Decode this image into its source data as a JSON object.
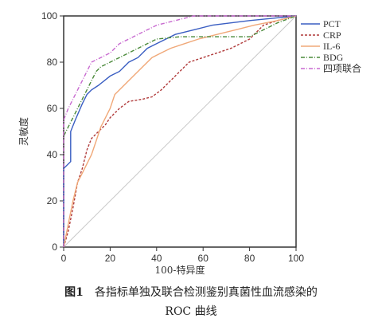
{
  "chart_data": {
    "type": "line",
    "xlabel": "100-特异度",
    "ylabel": "灵敏度",
    "xlim": [
      0,
      100
    ],
    "ylim": [
      0,
      100
    ],
    "x_ticks": [
      "0",
      "20",
      "40",
      "60",
      "80",
      "100"
    ],
    "y_ticks": [
      "0",
      "20",
      "40",
      "60",
      "80",
      "100"
    ],
    "grid": false,
    "legend_position": "top-right",
    "reference_line": true,
    "series": [
      {
        "name": "PCT",
        "color": "#3a5ec2",
        "dash": "solid",
        "points": [
          [
            0,
            0
          ],
          [
            0,
            34
          ],
          [
            3,
            37
          ],
          [
            3,
            50
          ],
          [
            5,
            55
          ],
          [
            8,
            62
          ],
          [
            10,
            66
          ],
          [
            12,
            68
          ],
          [
            15,
            70
          ],
          [
            20,
            74
          ],
          [
            24,
            76
          ],
          [
            28,
            80
          ],
          [
            32,
            82
          ],
          [
            36,
            86
          ],
          [
            40,
            88
          ],
          [
            44,
            90
          ],
          [
            48,
            92
          ],
          [
            56,
            94
          ],
          [
            64,
            96
          ],
          [
            72,
            97
          ],
          [
            80,
            98
          ],
          [
            90,
            99
          ],
          [
            100,
            100
          ]
        ]
      },
      {
        "name": "CRP",
        "color": "#b03a3a",
        "dash": "3,2",
        "points": [
          [
            0,
            0
          ],
          [
            2,
            7
          ],
          [
            4,
            17
          ],
          [
            6,
            28
          ],
          [
            8,
            34
          ],
          [
            10,
            42
          ],
          [
            12,
            47
          ],
          [
            15,
            50
          ],
          [
            18,
            53
          ],
          [
            20,
            56
          ],
          [
            24,
            60
          ],
          [
            28,
            63
          ],
          [
            34,
            64
          ],
          [
            38,
            65
          ],
          [
            42,
            68
          ],
          [
            46,
            72
          ],
          [
            50,
            76
          ],
          [
            54,
            80
          ],
          [
            60,
            82
          ],
          [
            66,
            84
          ],
          [
            72,
            86
          ],
          [
            76,
            88
          ],
          [
            80,
            90
          ],
          [
            86,
            96
          ],
          [
            92,
            98
          ],
          [
            100,
            100
          ]
        ]
      },
      {
        "name": "IL-6",
        "color": "#f0a878",
        "dash": "solid",
        "points": [
          [
            0,
            0
          ],
          [
            2,
            10
          ],
          [
            4,
            20
          ],
          [
            6,
            28
          ],
          [
            8,
            32
          ],
          [
            10,
            36
          ],
          [
            12,
            40
          ],
          [
            14,
            46
          ],
          [
            16,
            52
          ],
          [
            18,
            56
          ],
          [
            20,
            60
          ],
          [
            22,
            66
          ],
          [
            26,
            70
          ],
          [
            30,
            74
          ],
          [
            34,
            78
          ],
          [
            38,
            82
          ],
          [
            42,
            84
          ],
          [
            46,
            86
          ],
          [
            52,
            88
          ],
          [
            58,
            90
          ],
          [
            66,
            92
          ],
          [
            74,
            94
          ],
          [
            82,
            96
          ],
          [
            92,
            98
          ],
          [
            100,
            100
          ]
        ]
      },
      {
        "name": "BDG",
        "color": "#4a8a3a",
        "dash": "5,2,1,2",
        "points": [
          [
            0,
            0
          ],
          [
            0,
            48
          ],
          [
            2,
            52
          ],
          [
            4,
            56
          ],
          [
            6,
            60
          ],
          [
            8,
            64
          ],
          [
            10,
            68
          ],
          [
            12,
            72
          ],
          [
            14,
            76
          ],
          [
            16,
            78
          ],
          [
            20,
            80
          ],
          [
            24,
            82
          ],
          [
            28,
            84
          ],
          [
            32,
            86
          ],
          [
            36,
            88
          ],
          [
            40,
            90
          ],
          [
            50,
            91
          ],
          [
            60,
            91
          ],
          [
            70,
            91
          ],
          [
            80,
            91
          ],
          [
            86,
            94
          ],
          [
            92,
            97
          ],
          [
            100,
            100
          ]
        ]
      },
      {
        "name": "四项联合",
        "color": "#c86ad0",
        "dash": "5,2,1,2",
        "points": [
          [
            0,
            0
          ],
          [
            0,
            55
          ],
          [
            2,
            60
          ],
          [
            4,
            64
          ],
          [
            6,
            68
          ],
          [
            8,
            72
          ],
          [
            10,
            76
          ],
          [
            12,
            80
          ],
          [
            16,
            82
          ],
          [
            20,
            84
          ],
          [
            24,
            88
          ],
          [
            28,
            90
          ],
          [
            32,
            92
          ],
          [
            36,
            94
          ],
          [
            40,
            96
          ],
          [
            44,
            97
          ],
          [
            48,
            98
          ],
          [
            52,
            99
          ],
          [
            56,
            100
          ],
          [
            100,
            100
          ]
        ]
      }
    ]
  },
  "caption": {
    "figure_label": "图1",
    "line1": "各指标单独及联合检测鉴别真菌性血流感染的",
    "line2": "ROC 曲线"
  }
}
